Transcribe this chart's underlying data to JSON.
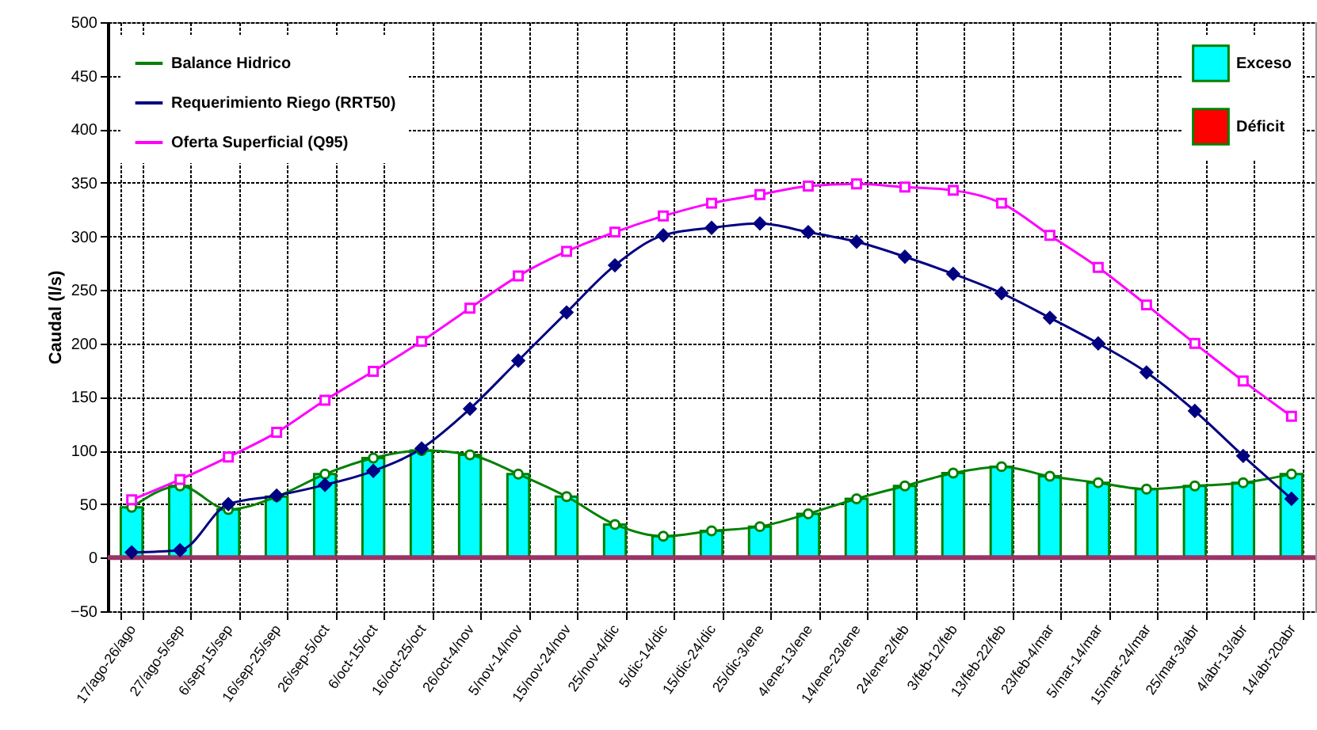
{
  "chart_data": {
    "type": "line",
    "ylabel": "Caudal (l/s)",
    "categories": [
      "17/ago-26/ago",
      "27/ago-5/sep",
      "6/sep-15/sep",
      "16/sep-25/sep",
      "26/sep-5/oct",
      "6/oct-15/oct",
      "16/oct-25/oct",
      "26/oct-4/nov",
      "5/nov-14/nov",
      "15/nov-24/nov",
      "25/nov-4/dic",
      "5/dic-14/dic",
      "15/dic-24/dic",
      "25/dic-3/ene",
      "4/ene-13/ene",
      "14/ene-23/ene",
      "24/ene-2/feb",
      "3/feb-12/feb",
      "13/feb-22/feb",
      "23/feb-4/mar",
      "5/mar-14/mar",
      "15/mar-24/mar",
      "25/mar-3/abr",
      "4/abr-13/abr",
      "14/abr-20abr"
    ],
    "series": [
      {
        "name": "Exceso",
        "type": "bar",
        "color": "#00ffff",
        "values": [
          47,
          67,
          45,
          57,
          78,
          93,
          100,
          96,
          78,
          57,
          31,
          20,
          25,
          29,
          41,
          55,
          67,
          79,
          85,
          76,
          70,
          64,
          67,
          70,
          78
        ]
      },
      {
        "name": "Déficit",
        "type": "bar",
        "color": "#ff0000",
        "values": [
          null,
          null,
          null,
          null,
          null,
          null,
          null,
          null,
          null,
          null,
          null,
          null,
          null,
          null,
          null,
          null,
          null,
          null,
          null,
          null,
          null,
          null,
          null,
          null,
          null
        ]
      },
      {
        "name": "Balance Hidrico",
        "color": "#008000",
        "marker": "circle",
        "values": [
          47,
          67,
          45,
          57,
          78,
          93,
          100,
          96,
          78,
          57,
          31,
          20,
          25,
          29,
          41,
          55,
          67,
          79,
          85,
          76,
          70,
          64,
          67,
          70,
          78
        ]
      },
      {
        "name": "Requerimiento Riego (RRT50)",
        "color": "#000080",
        "marker": "diamond",
        "values": [
          5,
          7,
          50,
          58,
          68,
          81,
          102,
          139,
          184,
          229,
          273,
          301,
          308,
          312,
          304,
          295,
          281,
          265,
          247,
          224,
          200,
          173,
          137,
          95,
          55
        ]
      },
      {
        "name": "Oferta Superficial (Q95)",
        "color": "#ff00ff",
        "marker": "square",
        "values": [
          54,
          73,
          94,
          117,
          147,
          174,
          202,
          233,
          263,
          286,
          304,
          319,
          331,
          339,
          347,
          349,
          346,
          343,
          331,
          301,
          271,
          236,
          200,
          165,
          132
        ]
      }
    ],
    "ylim": [
      -50,
      500
    ],
    "yticks": [
      -50,
      0,
      50,
      100,
      150,
      200,
      250,
      300,
      350,
      400,
      450,
      500
    ],
    "ref_lines": [
      {
        "axis": "y",
        "value": 0,
        "color": "#993366"
      }
    ],
    "grid": true,
    "legend": "top left"
  }
}
